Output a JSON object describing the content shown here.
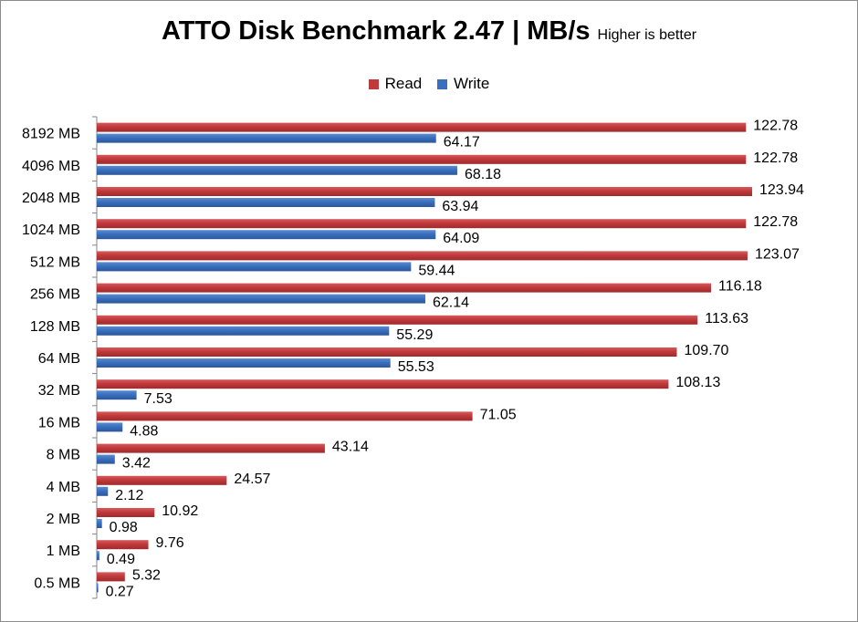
{
  "chart_data": {
    "type": "bar",
    "orientation": "horizontal",
    "title": "ATTO Disk Benchmark 2.47 | MB/s",
    "subtitle": "Higher is better",
    "categories": [
      "8192 MB",
      "4096 MB",
      "2048 MB",
      "1024 MB",
      "512 MB",
      "256 MB",
      "128 MB",
      "64 MB",
      "32 MB",
      "16 MB",
      "8 MB",
      "4 MB",
      "2 MB",
      "1 MB",
      "0.5 MB"
    ],
    "series": [
      {
        "name": "Read",
        "color": "#c0393b",
        "values": [
          122.78,
          122.78,
          123.94,
          122.78,
          123.07,
          116.18,
          113.63,
          109.7,
          108.13,
          71.05,
          43.14,
          24.57,
          10.92,
          9.76,
          5.32
        ]
      },
      {
        "name": "Write",
        "color": "#3a6fbd",
        "values": [
          64.17,
          68.18,
          63.94,
          64.09,
          59.44,
          62.14,
          55.29,
          55.53,
          7.53,
          4.88,
          3.42,
          2.12,
          0.98,
          0.49,
          0.27
        ]
      }
    ],
    "value_labels": {
      "Read": [
        "122.78",
        "122.78",
        "123.94",
        "122.78",
        "123.07",
        "116.18",
        "113.63",
        "109.70",
        "108.13",
        "71.05",
        "43.14",
        "24.57",
        "10.92",
        "9.76",
        "5.32"
      ],
      "Write": [
        "64.17",
        "68.18",
        "63.94",
        "64.09",
        "59.44",
        "62.14",
        "55.29",
        "55.53",
        "7.53",
        "4.88",
        "3.42",
        "2.12",
        "0.98",
        "0.49",
        "0.27"
      ]
    },
    "xlim": [
      0,
      123.94
    ],
    "grid": false,
    "legend_position": "top"
  }
}
